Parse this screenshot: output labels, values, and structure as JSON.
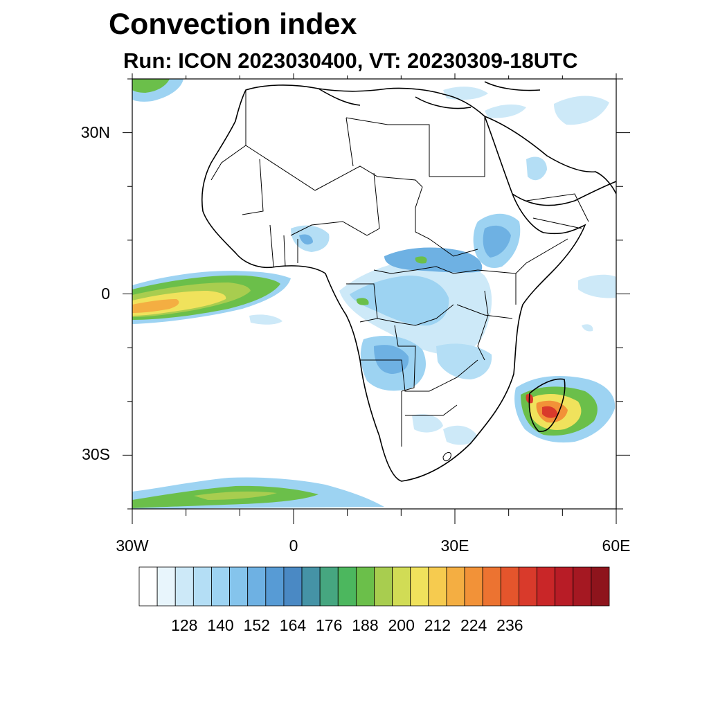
{
  "title": "Convection index",
  "subtitle": "Run: ICON 2023030400,  VT: 20230309-18UTC",
  "map": {
    "extent": {
      "lon_min": -30,
      "lon_max": 60,
      "lat_min": -40,
      "lat_max": 40
    },
    "lat_ticks": [
      {
        "value": 30,
        "label": "30N"
      },
      {
        "value": 0,
        "label": "0"
      },
      {
        "value": -30,
        "label": "30S"
      }
    ],
    "lon_ticks": [
      {
        "value": -30,
        "label": "30W"
      },
      {
        "value": 0,
        "label": "0"
      },
      {
        "value": 30,
        "label": "30E"
      },
      {
        "value": 60,
        "label": "60E"
      }
    ],
    "minor_lat_ticks": [
      40,
      20,
      10,
      -10,
      -20,
      -40
    ],
    "minor_lon_ticks": [
      -20,
      -10,
      10,
      20,
      40,
      50
    ]
  },
  "colorbar": {
    "levels": [
      128,
      140,
      152,
      164,
      176,
      188,
      200,
      212,
      224,
      236
    ],
    "colors": [
      "#ffffff",
      "#e8f5fc",
      "#cde9f8",
      "#b4def5",
      "#9dd3f2",
      "#85c4ec",
      "#6eb1e3",
      "#579bd5",
      "#4a89c4",
      "#4593a6",
      "#46a680",
      "#4cb75e",
      "#6bbf4a",
      "#a8cd4f",
      "#d1dc55",
      "#f0e25c",
      "#f6cb4f",
      "#f4ae42",
      "#f29238",
      "#ec7331",
      "#e4552c",
      "#d93a2b",
      "#c92628",
      "#b81c26",
      "#a51822",
      "#8e141c"
    ]
  }
}
